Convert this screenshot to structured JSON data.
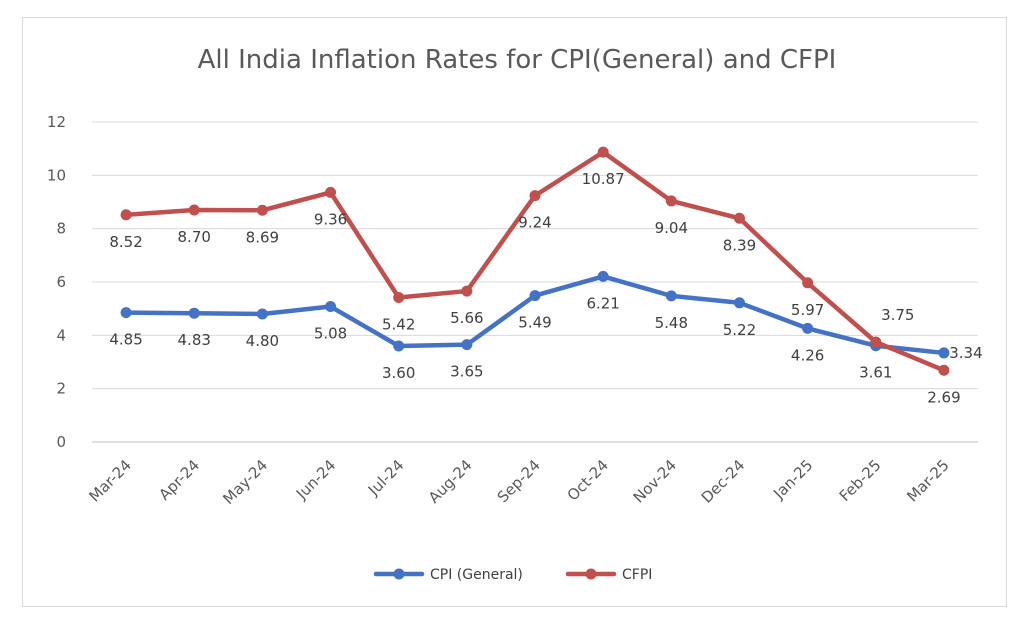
{
  "chart_data": {
    "type": "line",
    "title": "All India Inflation Rates for CPI(General) and CFPI",
    "xlabel": "",
    "ylabel": "",
    "categories": [
      "Mar-24",
      "Apr-24",
      "May-24",
      "Jun-24",
      "Jul-24",
      "Aug-24",
      "Sep-24",
      "Oct-24",
      "Nov-24",
      "Dec-24",
      "Jan-25",
      "Feb-25",
      "Mar-25"
    ],
    "ylim": [
      0,
      12
    ],
    "yticks": [
      "0",
      "2",
      "4",
      "6",
      "8",
      "10",
      "12"
    ],
    "grid": true,
    "legend_position": "bottom",
    "series": [
      {
        "name": "CPI (General)",
        "color": "#4472c4",
        "values": [
          4.85,
          4.83,
          4.8,
          5.08,
          3.6,
          3.65,
          5.49,
          6.21,
          5.48,
          5.22,
          4.26,
          3.61,
          3.34
        ],
        "labels": [
          "4.85",
          "4.83",
          "4.80",
          "5.08",
          "3.60",
          "3.65",
          "5.49",
          "6.21",
          "5.48",
          "5.22",
          "4.26",
          "3.61",
          "3.34"
        ]
      },
      {
        "name": "CFPI",
        "color": "#c0504d",
        "values": [
          8.52,
          8.7,
          8.69,
          9.36,
          5.42,
          5.66,
          9.24,
          10.87,
          9.04,
          8.39,
          5.97,
          3.75,
          2.69
        ],
        "labels": [
          "8.52",
          "8.70",
          "8.69",
          "9.36",
          "5.42",
          "5.66",
          "9.24",
          "10.87",
          "9.04",
          "8.39",
          "5.97",
          "3.75",
          "2.69"
        ]
      }
    ]
  }
}
